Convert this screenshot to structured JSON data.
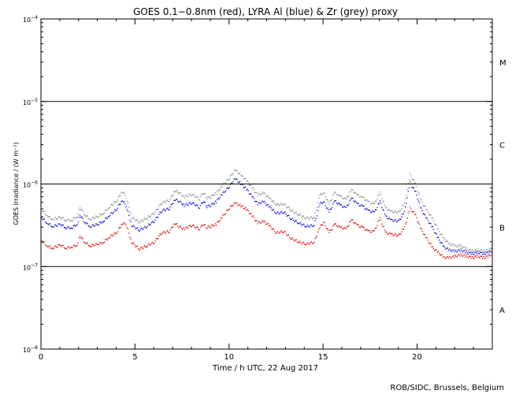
{
  "chart_data": {
    "type": "scatter",
    "title": "GOES 0.1−0.8nm (red), LYRA Al (blue) & Zr (grey) proxy",
    "xlabel": "Time / h UTC, 22 Aug 2017",
    "ylabel": "GOES Irradiance / (W m⁻²)",
    "credit": "ROB/SIDC, Brussels, Belgium",
    "x_scale": "linear",
    "y_scale": "log",
    "xlim": [
      0,
      24
    ],
    "ylim": [
      1e-08,
      0.0001
    ],
    "x_ticks": [
      {
        "value": 0,
        "label": "0"
      },
      {
        "value": 5,
        "label": "5"
      },
      {
        "value": 10,
        "label": "10"
      },
      {
        "value": 15,
        "label": "15"
      },
      {
        "value": 20,
        "label": "20"
      }
    ],
    "y_ticks": [
      {
        "value": 1e-08,
        "base": "10",
        "exp": "−8"
      },
      {
        "value": 1e-07,
        "base": "10",
        "exp": "−7"
      },
      {
        "value": 1e-06,
        "base": "10",
        "exp": "−6"
      },
      {
        "value": 1e-05,
        "base": "10",
        "exp": "−5"
      },
      {
        "value": 0.0001,
        "base": "10",
        "exp": "−4"
      }
    ],
    "flare_class_lines": [
      1e-07,
      1e-06,
      1e-05
    ],
    "flare_classes": [
      {
        "label": "A",
        "y": 3e-08
      },
      {
        "label": "B",
        "y": 3e-07
      },
      {
        "label": "C",
        "y": 3e-06
      },
      {
        "label": "M",
        "y": 3e-05
      }
    ],
    "colors": {
      "goes": "#e00000",
      "lyra_al": "#0000dd",
      "lyra_zr": "#888888",
      "axes": "#000000"
    },
    "series": [
      {
        "name": "GOES 0.1−0.8nm",
        "color": "#e00000",
        "x": [
          0.0,
          0.3,
          0.6,
          1.0,
          1.3,
          1.6,
          1.9,
          2.05,
          2.3,
          2.6,
          3.0,
          3.3,
          3.6,
          4.0,
          4.3,
          4.5,
          4.8,
          5.2,
          5.6,
          6.0,
          6.4,
          6.8,
          7.1,
          7.3,
          7.6,
          8.0,
          8.4,
          8.6,
          8.8,
          9.0,
          9.3,
          9.6,
          10.0,
          10.3,
          10.6,
          10.9,
          11.2,
          11.5,
          11.8,
          12.1,
          12.5,
          12.9,
          13.3,
          13.7,
          14.1,
          14.5,
          14.8,
          15.0,
          15.3,
          15.6,
          15.9,
          16.2,
          16.5,
          16.8,
          17.1,
          17.4,
          17.7,
          18.0,
          18.3,
          18.6,
          19.0,
          19.3,
          19.6,
          19.9,
          20.2,
          20.5,
          20.8,
          21.1,
          21.4,
          21.7,
          22.0,
          22.3,
          22.6,
          22.9,
          23.2,
          23.5,
          23.8,
          24.0
        ],
        "y": [
          2.1e-07,
          1.8e-07,
          1.7e-07,
          1.85e-07,
          1.7e-07,
          1.75e-07,
          1.85e-07,
          2.4e-07,
          2e-07,
          1.8e-07,
          1.9e-07,
          2e-07,
          2.3e-07,
          2.6e-07,
          3.4e-07,
          3.3e-07,
          2e-07,
          1.65e-07,
          1.8e-07,
          2e-07,
          2.6e-07,
          2.7e-07,
          3.4e-07,
          3.1e-07,
          2.9e-07,
          3.2e-07,
          2.9e-07,
          3.3e-07,
          3e-07,
          3.1e-07,
          3.3e-07,
          4e-07,
          5.2e-07,
          6e-07,
          5.5e-07,
          5e-07,
          4.2e-07,
          3.4e-07,
          3.6e-07,
          3.2e-07,
          2.6e-07,
          2.7e-07,
          2.2e-07,
          2e-07,
          1.9e-07,
          2e-07,
          3e-07,
          3.5e-07,
          2.6e-07,
          3.3e-07,
          3e-07,
          2.9e-07,
          3.7e-07,
          3.2e-07,
          3e-07,
          2.7e-07,
          2.7e-07,
          3.9e-07,
          2.6e-07,
          2.5e-07,
          2.4e-07,
          3e-07,
          5.2e-07,
          4.2e-07,
          2.8e-07,
          2.2e-07,
          1.7e-07,
          1.5e-07,
          1.3e-07,
          1.3e-07,
          1.35e-07,
          1.4e-07,
          1.35e-07,
          1.3e-07,
          1.35e-07,
          1.3e-07,
          1.35e-07,
          1.5e-07
        ]
      },
      {
        "name": "LYRA Al",
        "color": "#0000dd",
        "x": [
          0.0,
          0.3,
          0.6,
          1.0,
          1.3,
          1.6,
          1.9,
          2.05,
          2.3,
          2.6,
          3.0,
          3.3,
          3.6,
          4.0,
          4.3,
          4.5,
          4.8,
          5.2,
          5.6,
          6.0,
          6.4,
          6.8,
          7.1,
          7.3,
          7.6,
          8.0,
          8.4,
          8.6,
          8.8,
          9.0,
          9.3,
          9.6,
          10.0,
          10.3,
          10.6,
          10.9,
          11.2,
          11.5,
          11.8,
          12.1,
          12.5,
          12.9,
          13.3,
          13.7,
          14.1,
          14.5,
          14.8,
          15.0,
          15.3,
          15.6,
          15.9,
          16.2,
          16.5,
          16.8,
          17.1,
          17.4,
          17.7,
          18.0,
          18.3,
          18.6,
          19.0,
          19.3,
          19.6,
          19.9,
          20.2,
          20.5,
          20.8,
          21.1,
          21.4,
          21.7,
          22.0,
          22.3,
          22.6,
          22.9,
          23.2,
          23.5,
          23.8,
          24.0
        ],
        "y": [
          4e-07,
          3.4e-07,
          3.1e-07,
          3.3e-07,
          3e-07,
          3e-07,
          3.3e-07,
          4.3e-07,
          3.5e-07,
          3.1e-07,
          3.3e-07,
          3.6e-07,
          4.2e-07,
          5e-07,
          6.5e-07,
          5.5e-07,
          3.2e-07,
          2.8e-07,
          3.1e-07,
          3.6e-07,
          4.8e-07,
          5.1e-07,
          6.6e-07,
          6.3e-07,
          5.6e-07,
          6e-07,
          5.3e-07,
          6.3e-07,
          5.4e-07,
          5.6e-07,
          6.2e-07,
          7.6e-07,
          9.5e-07,
          1.18e-06,
          1.02e-06,
          8.8e-07,
          7.2e-07,
          5.8e-07,
          6.2e-07,
          5.4e-07,
          4.5e-07,
          4.6e-07,
          3.8e-07,
          3.4e-07,
          3.1e-07,
          3.2e-07,
          5.8e-07,
          6.2e-07,
          4.6e-07,
          6.3e-07,
          5.6e-07,
          5.2e-07,
          6.8e-07,
          5.8e-07,
          5.4e-07,
          4.8e-07,
          4.6e-07,
          6.2e-07,
          4.1e-07,
          3.7e-07,
          3.6e-07,
          4.6e-07,
          1.05e-06,
          8e-07,
          5e-07,
          3.8e-07,
          3e-07,
          2.2e-07,
          1.75e-07,
          1.6e-07,
          1.55e-07,
          1.6e-07,
          1.5e-07,
          1.45e-07,
          1.5e-07,
          1.45e-07,
          1.5e-07,
          1.7e-07
        ]
      },
      {
        "name": "LYRA Zr",
        "color": "#888888",
        "x": [
          0.0,
          0.3,
          0.6,
          1.0,
          1.3,
          1.6,
          1.9,
          2.05,
          2.3,
          2.6,
          3.0,
          3.3,
          3.6,
          4.0,
          4.3,
          4.5,
          4.8,
          5.2,
          5.6,
          6.0,
          6.4,
          6.8,
          7.1,
          7.3,
          7.6,
          8.0,
          8.4,
          8.6,
          8.8,
          9.0,
          9.3,
          9.6,
          10.0,
          10.3,
          10.6,
          10.9,
          11.2,
          11.5,
          11.8,
          12.1,
          12.5,
          12.9,
          13.3,
          13.7,
          14.1,
          14.5,
          14.8,
          15.0,
          15.3,
          15.6,
          15.9,
          16.2,
          16.5,
          16.8,
          17.1,
          17.4,
          17.7,
          18.0,
          18.3,
          18.6,
          19.0,
          19.3,
          19.6,
          19.9,
          20.2,
          20.5,
          20.8,
          21.1,
          21.4,
          21.7,
          22.0,
          22.3,
          22.6,
          22.9,
          23.2,
          23.5,
          23.8,
          24.0
        ],
        "y": [
          5e-07,
          4.2e-07,
          3.8e-07,
          4e-07,
          3.7e-07,
          3.7e-07,
          4.1e-07,
          5.3e-07,
          4.3e-07,
          3.8e-07,
          4.1e-07,
          4.5e-07,
          5.3e-07,
          6.3e-07,
          8.3e-07,
          7e-07,
          4e-07,
          3.5e-07,
          3.9e-07,
          4.5e-07,
          6e-07,
          6.4e-07,
          8.4e-07,
          8e-07,
          7.1e-07,
          7.6e-07,
          6.7e-07,
          8e-07,
          6.9e-07,
          7.1e-07,
          7.9e-07,
          9.6e-07,
          1.2e-06,
          1.5e-06,
          1.3e-06,
          1.12e-06,
          9.2e-07,
          7.4e-07,
          7.9e-07,
          6.9e-07,
          5.7e-07,
          5.8e-07,
          4.8e-07,
          4.3e-07,
          3.9e-07,
          4e-07,
          7.4e-07,
          7.9e-07,
          5.8e-07,
          8e-07,
          7.1e-07,
          6.6e-07,
          8.6e-07,
          7.4e-07,
          6.9e-07,
          6.1e-07,
          5.8e-07,
          7.9e-07,
          5.2e-07,
          4.7e-07,
          4.6e-07,
          5.8e-07,
          1.32e-06,
          1e-06,
          6.3e-07,
          4.8e-07,
          3.8e-07,
          2.8e-07,
          2.2e-07,
          1.9e-07,
          1.8e-07,
          1.8e-07,
          1.65e-07,
          1.55e-07,
          1.6e-07,
          1.55e-07,
          1.6e-07,
          1.85e-07
        ]
      }
    ]
  }
}
